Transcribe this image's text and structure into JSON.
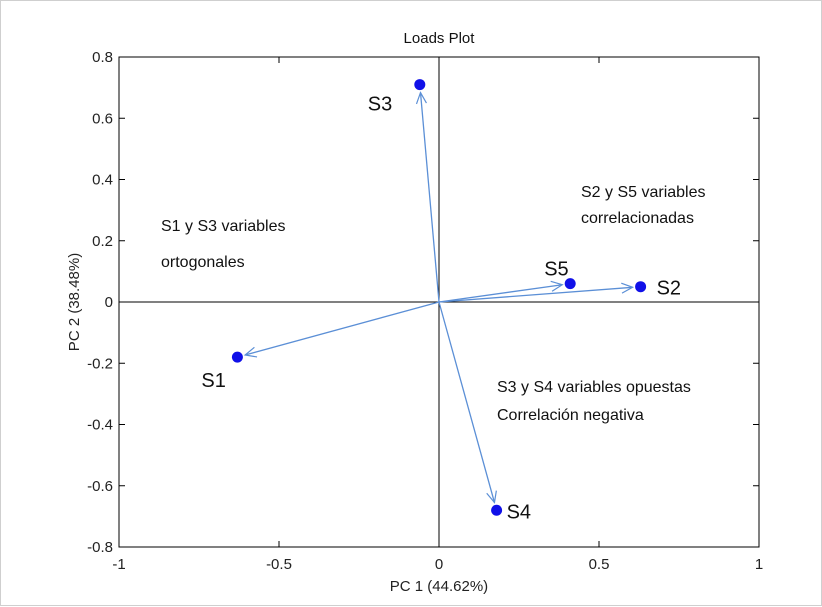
{
  "chart_data": {
    "type": "scatter",
    "title": "Loads Plot",
    "xlabel": "PC 1 (44.62%)",
    "ylabel": "PC 2 (38.48%)",
    "xlim": [
      -1,
      1
    ],
    "ylim": [
      -0.8,
      0.8
    ],
    "x_ticks": [
      "-1",
      "-0.5",
      "0",
      "0.5",
      "1"
    ],
    "y_ticks": [
      "0.8",
      "0.6",
      "0.4",
      "0.2",
      "0",
      "-0.2",
      "-0.4",
      "-0.6",
      "-0.8"
    ],
    "x_tick_values": [
      -1,
      -0.5,
      0,
      0.5,
      1
    ],
    "y_tick_values": [
      0.8,
      0.6,
      0.4,
      0.2,
      0,
      -0.2,
      -0.4,
      -0.6,
      -0.8
    ],
    "grid": false,
    "points": [
      {
        "label": "S1",
        "x": -0.63,
        "y": -0.18
      },
      {
        "label": "S2",
        "x": 0.63,
        "y": 0.05
      },
      {
        "label": "S3",
        "x": -0.06,
        "y": 0.71
      },
      {
        "label": "S4",
        "x": 0.18,
        "y": -0.68
      },
      {
        "label": "S5",
        "x": 0.41,
        "y": 0.06
      }
    ],
    "annotations": [
      {
        "lines": [
          "S1 y S3 variables",
          "ortogonales"
        ]
      },
      {
        "lines": [
          "S2 y S5 variables",
          "correlacionadas"
        ]
      },
      {
        "lines": [
          "S3 y S4 variables opuestas",
          "Correlación negativa"
        ]
      }
    ],
    "colors": {
      "point": "#1010e8",
      "arrow": "#5b8fd6",
      "axis": "#000000"
    }
  }
}
